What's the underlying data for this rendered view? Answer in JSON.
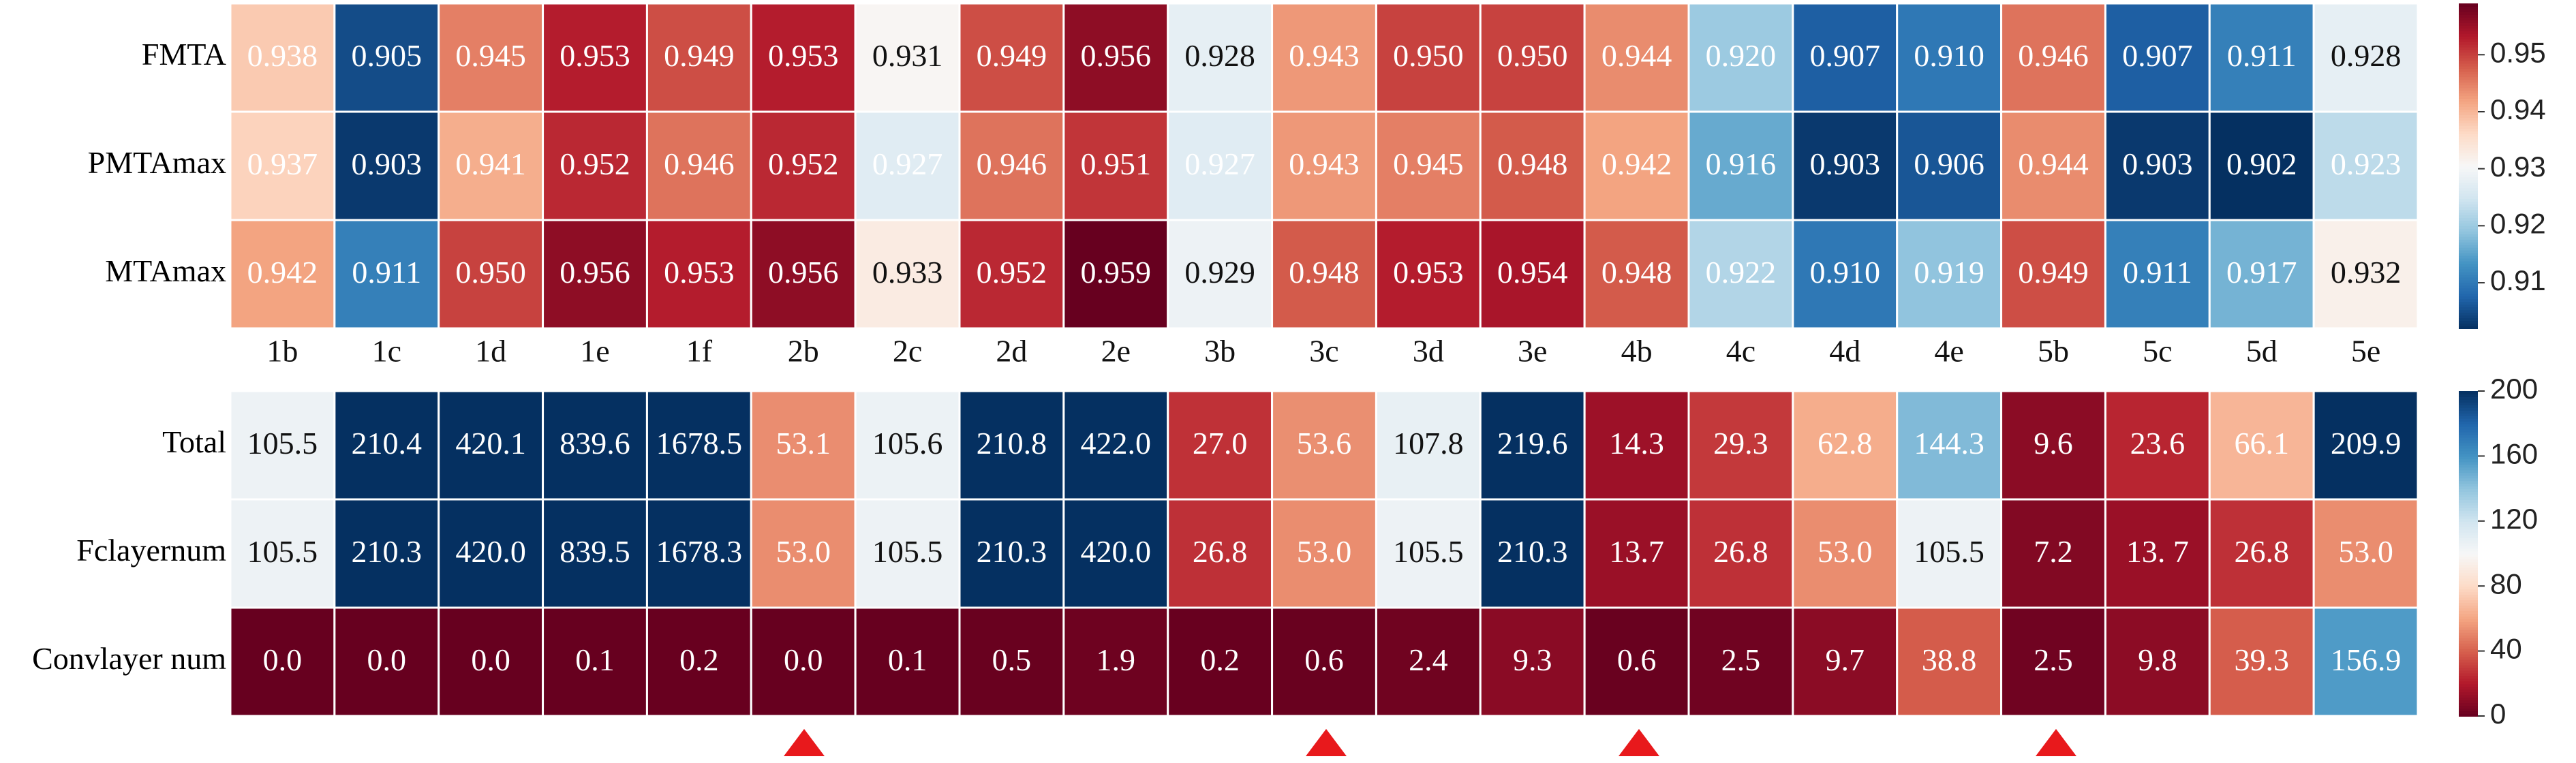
{
  "chart_data": [
    {
      "type": "heatmap",
      "rows": [
        "FMTA",
        "PMTAmax",
        "MTAmax"
      ],
      "columns": [
        "1b",
        "1c",
        "1d",
        "1e",
        "1f",
        "2b",
        "2c",
        "2d",
        "2e",
        "3b",
        "3c",
        "3d",
        "3e",
        "4b",
        "4c",
        "4d",
        "4e",
        "5b",
        "5c",
        "5d",
        "5e"
      ],
      "values": [
        [
          0.938,
          0.905,
          0.945,
          0.953,
          0.949,
          0.953,
          0.931,
          0.949,
          0.956,
          0.928,
          0.943,
          0.95,
          0.95,
          0.944,
          0.92,
          0.907,
          0.91,
          0.946,
          0.907,
          0.911,
          0.928
        ],
        [
          0.937,
          0.903,
          0.941,
          0.952,
          0.946,
          0.952,
          0.927,
          0.946,
          0.951,
          0.927,
          0.943,
          0.945,
          0.948,
          0.942,
          0.916,
          0.903,
          0.906,
          0.944,
          0.903,
          0.902,
          0.923
        ],
        [
          0.942,
          0.911,
          0.95,
          0.956,
          0.953,
          0.956,
          0.933,
          0.952,
          0.959,
          0.929,
          0.948,
          0.953,
          0.954,
          0.948,
          0.922,
          0.91,
          0.919,
          0.949,
          0.911,
          0.917,
          0.932
        ]
      ],
      "value_labels": [
        [
          "0.938",
          "0.905",
          "0.945",
          "0.953",
          "0.949",
          "0.953",
          "0.931",
          "0.949",
          "0.956",
          "0.928",
          "0.943",
          "0.950",
          "0.950",
          "0.944",
          "0.920",
          "0.907",
          "0.910",
          "0.946",
          "0.907",
          "0.911",
          "0.928"
        ],
        [
          "0.937",
          "0.903",
          "0.941",
          "0.952",
          "0.946",
          "0.952",
          "0.927",
          "0.946",
          "0.951",
          "0.927",
          "0.943",
          "0.945",
          "0.948",
          "0.942",
          "0.916",
          "0.903",
          "0.906",
          "0.944",
          "0.903",
          "0.902",
          "0.923"
        ],
        [
          "0.942",
          "0.911",
          "0.950",
          "0.956",
          "0.953",
          "0.956",
          "0.933",
          "0.952",
          "0.959",
          "0.929",
          "0.948",
          "0.953",
          "0.954",
          "0.948",
          "0.922",
          "0.910",
          "0.919",
          "0.949",
          "0.911",
          "0.917",
          "0.932"
        ]
      ],
      "colormap": "RdBu_r",
      "vlim": [
        0.902,
        0.959
      ],
      "cticks": [
        0.91,
        0.92,
        0.93,
        0.94,
        0.95
      ]
    },
    {
      "type": "heatmap",
      "rows": [
        "Total",
        "Fclayernum",
        "Convlayer num"
      ],
      "values": [
        [
          105.5,
          210.4,
          420.1,
          839.6,
          1678.5,
          53.1,
          105.6,
          210.8,
          422.0,
          27.0,
          53.6,
          107.8,
          219.6,
          14.3,
          29.3,
          62.8,
          144.3,
          9.6,
          23.6,
          66.1,
          209.9
        ],
        [
          105.5,
          210.3,
          420.0,
          839.5,
          1678.3,
          53.0,
          105.5,
          210.3,
          420.0,
          26.8,
          53.0,
          105.5,
          210.3,
          13.7,
          26.8,
          53.0,
          105.5,
          7.2,
          13.7,
          26.8,
          53.0
        ],
        [
          0.0,
          0.0,
          0.0,
          0.1,
          0.2,
          0.0,
          0.1,
          0.5,
          1.9,
          0.2,
          0.6,
          2.4,
          9.3,
          0.6,
          2.5,
          9.7,
          38.8,
          2.5,
          9.8,
          39.3,
          156.9
        ]
      ],
      "value_labels": [
        [
          "105.5",
          "210.4",
          "420.1",
          "839.6",
          "1678.5",
          "53.1",
          "105.6",
          "210.8",
          "422.0",
          "27.0",
          "53.6",
          "107.8",
          "219.6",
          "14.3",
          "29.3",
          "62.8",
          "144.3",
          "9.6",
          "23.6",
          "66.1",
          "209.9"
        ],
        [
          "105.5",
          "210.3",
          "420.0",
          "839.5",
          "1678.3",
          "53.0",
          "105.5",
          "210.3",
          "420.0",
          "26.8",
          "53.0",
          "105.5",
          "210.3",
          "13.7",
          "26.8",
          "53.0",
          "105.5",
          "7.2",
          "13. 7",
          "26.8",
          "53.0"
        ],
        [
          "0.0",
          "0.0",
          "0.0",
          "0.1",
          "0.2",
          "0.0",
          "0.1",
          "0.5",
          "1.9",
          "0.2",
          "0.6",
          "2.4",
          "9.3",
          "0.6",
          "2.5",
          "9.7",
          "38.8",
          "2.5",
          "9.8",
          "39.3",
          "156.9"
        ]
      ],
      "colormap": "RdBu",
      "vlim": [
        0,
        200
      ],
      "cticks": [
        0,
        40,
        80,
        120,
        160,
        200
      ]
    }
  ]
}
